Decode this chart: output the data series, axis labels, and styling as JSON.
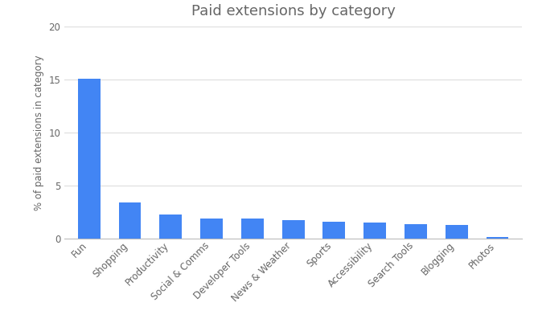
{
  "title": "Paid extensions by category",
  "categories": [
    "Fun",
    "Shopping",
    "Productivity",
    "Social & Comms",
    "Developer Tools",
    "News & Weather",
    "Sports",
    "Accessibility",
    "Search Tools",
    "Blogging",
    "Photos"
  ],
  "values": [
    15.1,
    3.4,
    2.25,
    1.9,
    1.85,
    1.7,
    1.55,
    1.5,
    1.35,
    1.3,
    0.1
  ],
  "bar_color": "#4285f4",
  "ylabel": "% of paid extensions in category",
  "ylim": [
    0,
    20
  ],
  "yticks": [
    0,
    5,
    10,
    15,
    20
  ],
  "background_color": "#ffffff",
  "title_fontsize": 13,
  "label_fontsize": 8.5,
  "tick_fontsize": 8.5,
  "title_color": "#666666",
  "label_color": "#666666",
  "tick_color": "#666666",
  "grid_color": "#dddddd",
  "bar_width": 0.55
}
